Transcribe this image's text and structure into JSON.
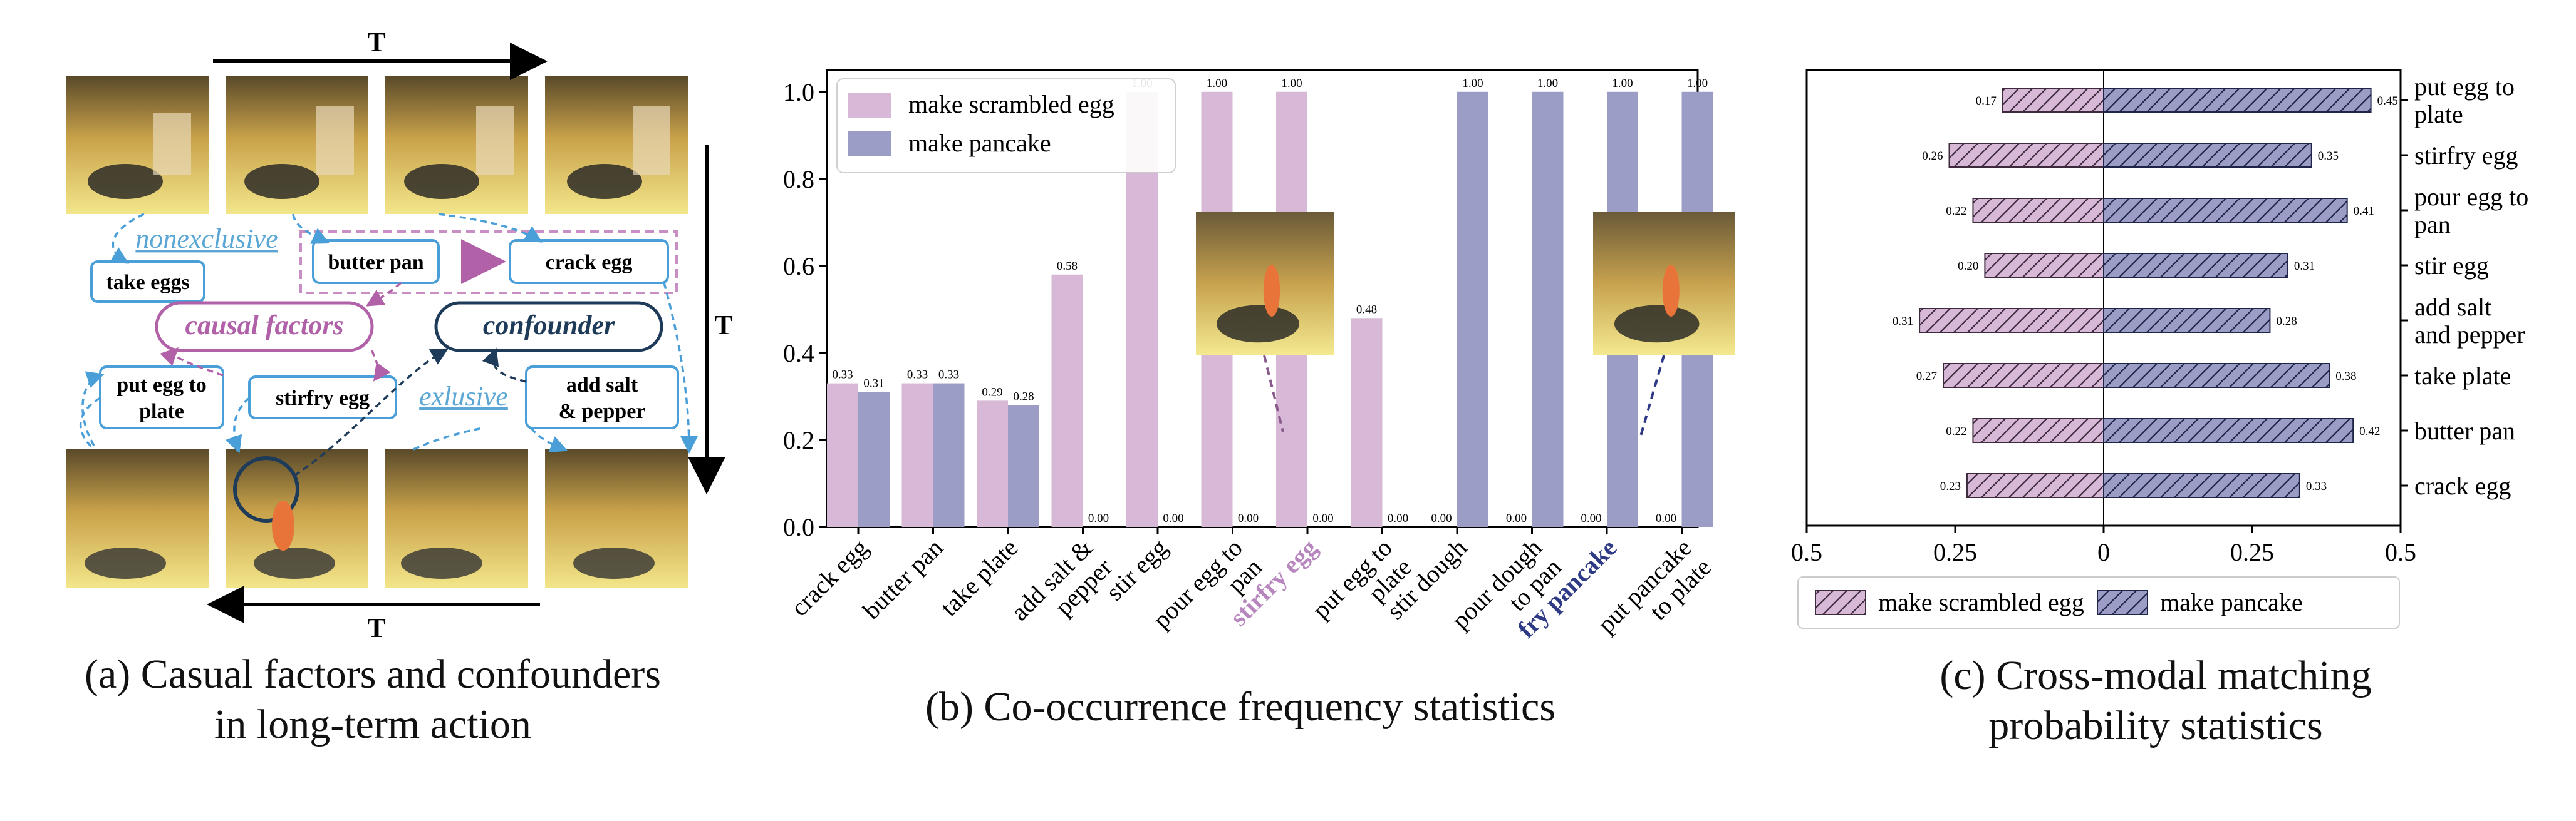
{
  "panel_a": {
    "time_label": "T",
    "nodes": {
      "take_eggs": "take eggs",
      "butter_pan": "butter pan",
      "crack_egg": "crack egg",
      "put_egg_to_plate_l1": "put egg to",
      "put_egg_to_plate_l2": "plate",
      "stirfry_egg": "stirfry egg",
      "add_salt_l1": "add salt",
      "add_salt_l2": "& pepper"
    },
    "labels": {
      "nonexclusive": "nonexclusive",
      "causal_factors": "causal factors",
      "confounder": "confounder",
      "exlusive": "exlusive"
    },
    "caption_line1": "(a) Casual factors and confounders",
    "caption_line2": "in long-term action",
    "colors": {
      "blue_box": "#4a9fd8",
      "purple": "#b061a8",
      "navy": "#1f3b5a",
      "light_blue_text": "#5aa7d6"
    }
  },
  "panel_b": {
    "caption": "(b) Co-occurrence frequency statistics"
  },
  "panel_c": {
    "caption_line1": "(c) Cross-modal matching",
    "caption_line2": "probability statistics"
  },
  "chart_data": [
    {
      "type": "bar",
      "title": "",
      "xlabel": "",
      "ylabel": "",
      "ylim": [
        0,
        1.05
      ],
      "yticks": [
        "0.0",
        "0.2",
        "0.4",
        "0.6",
        "0.8",
        "1.0"
      ],
      "legend_position": "top-left",
      "categories": [
        [
          "crack egg"
        ],
        [
          "butter pan"
        ],
        [
          "take plate"
        ],
        [
          "add salt &",
          "pepper"
        ],
        [
          "stir egg"
        ],
        [
          "pour egg to",
          "pan"
        ],
        [
          "stirfry egg"
        ],
        [
          "put egg to",
          "plate"
        ],
        [
          "stir dough"
        ],
        [
          "pour dough",
          "to pan"
        ],
        [
          "fry pancake"
        ],
        [
          "put pancake",
          "to plate"
        ]
      ],
      "highlighted_categories": {
        "6": "#b886be",
        "10": "#2f3a86"
      },
      "series": [
        {
          "name": "make scrambled egg",
          "color": "#d7b8d6",
          "values": [
            0.33,
            0.33,
            0.29,
            0.58,
            1.0,
            1.0,
            1.0,
            0.48,
            0.0,
            0.0,
            0.0,
            0.0
          ],
          "labels": [
            "0.33",
            "0.33",
            "0.29",
            "0.58",
            "1.00",
            "1.00",
            "1.00",
            "0.48",
            "0.00",
            "0.00",
            "0.00",
            "0.00"
          ]
        },
        {
          "name": "make pancake",
          "color": "#9b9dc6",
          "values": [
            0.31,
            0.33,
            0.28,
            0.0,
            0.0,
            0.0,
            0.0,
            0.0,
            1.0,
            1.0,
            1.0,
            1.0
          ],
          "labels": [
            "0.31",
            "0.33",
            "0.28",
            "0.00",
            "0.00",
            "0.00",
            "0.00",
            "0.00",
            "1.00",
            "1.00",
            "1.00",
            "1.00"
          ]
        }
      ]
    },
    {
      "type": "bar",
      "orientation": "horizontal",
      "title": "",
      "xlim": [
        -0.5,
        0.5
      ],
      "xticks": [
        "0.5",
        "0.25",
        "0",
        "0.25",
        "0.5"
      ],
      "legend_position": "bottom",
      "categories": [
        [
          "put egg to",
          "plate"
        ],
        [
          "stirfry egg"
        ],
        [
          "pour egg to",
          "pan"
        ],
        [
          "stir egg"
        ],
        [
          "add salt",
          "and pepper"
        ],
        [
          "take plate"
        ],
        [
          "butter pan"
        ],
        [
          "crack egg"
        ]
      ],
      "series": [
        {
          "name": "make scrambled egg",
          "color": "#d7b8d6",
          "values": [
            0.17,
            0.26,
            0.22,
            0.2,
            0.31,
            0.27,
            0.22,
            0.23
          ],
          "labels": [
            "0.17",
            "0.26",
            "0.22",
            "0.20",
            "0.31",
            "0.27",
            "0.22",
            "0.23"
          ]
        },
        {
          "name": "make pancake",
          "color": "#9b9dc6",
          "values": [
            0.45,
            0.35,
            0.41,
            0.31,
            0.28,
            0.38,
            0.42,
            0.33
          ],
          "labels": [
            "0.45",
            "0.35",
            "0.41",
            "0.31",
            "0.28",
            "0.38",
            "0.42",
            "0.33"
          ]
        }
      ]
    }
  ]
}
